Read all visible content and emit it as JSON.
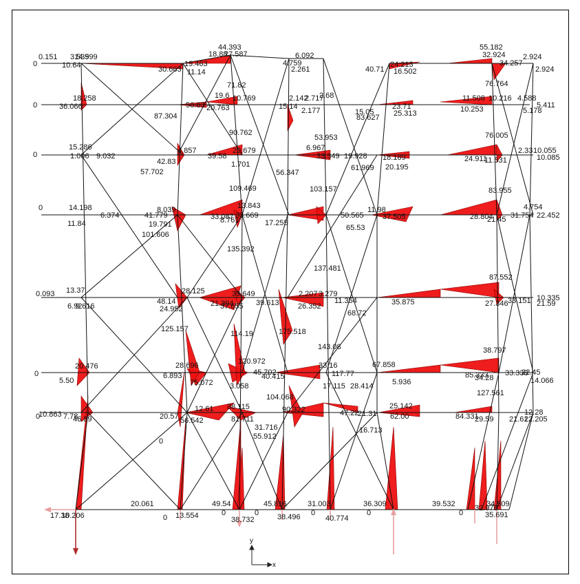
{
  "figure": {
    "axes": {
      "y_label": "y",
      "x_label": "x"
    }
  },
  "moment_labels": [
    "0.151",
    "3.539",
    "14.599",
    "10.64",
    "0",
    "30.663",
    "19.463",
    "11.14",
    "44.393",
    "18.88",
    "27.587",
    "71.82",
    "4.759",
    "6.092",
    "2.261",
    "40.71",
    "24.213",
    "16.502",
    "55.182",
    "32.924",
    "34.257",
    "2.924",
    "2.924",
    "0",
    "18.258",
    "36.066",
    "87.304",
    "50.83",
    "20.763",
    "10.769",
    "19.6",
    "2.142",
    "2.717",
    "2.68",
    "15.14",
    "2.177",
    "15.05",
    "23.71",
    "83.627",
    "25.313",
    "76.764",
    "11.508",
    "10.216",
    "10.253",
    "4.588",
    "5.411",
    "5.178",
    "0",
    "15.286",
    "1.006",
    "9.032",
    "42.83",
    "57.702",
    "4.857",
    "39.58",
    "20.679",
    "1.701",
    "90.762",
    "6.967",
    "53.953",
    "56.347",
    "33.349",
    "19.928",
    "18.189",
    "61.969",
    "20.195",
    "76.005",
    "24.911",
    "11.531",
    "2.33",
    "10.055",
    "10.085",
    "0",
    "14.198",
    "6.374",
    "11.84",
    "41.779",
    "19.791",
    "101.606",
    "8.039",
    "33.087",
    "8.761",
    "13.843",
    "33.669",
    "109.469",
    "17.255",
    "103.157",
    "50.565",
    "11.98",
    "37.505",
    "65.53",
    "83.955",
    "28.804",
    "21.45",
    "31.754",
    "4.754",
    "22.452",
    "0.093",
    "13.37",
    "6.92",
    "9.616",
    "48.14",
    "24.952",
    "125.157",
    "28.125",
    "21.394",
    "37.655",
    "135.392",
    "39.649",
    "39.613",
    "2.207",
    "3.279",
    "137.481",
    "26.352",
    "11.354",
    "35.875",
    "68.72",
    "87.552",
    "27.346",
    "33.151",
    "10.335",
    "21.59",
    "0",
    "5.50",
    "20.476",
    "6.893",
    "75.072",
    "28.696",
    "3.058",
    "120.972",
    "45.702",
    "40.415",
    "33.16",
    "17.115",
    "117.77",
    "28.414",
    "67.858",
    "5.936",
    "38.797",
    "85.333",
    "34.28",
    "33.338",
    "22.45",
    "14.066",
    "10.863",
    "0",
    "7.78",
    "46.89",
    "20.57",
    "56.542",
    "12.61",
    "81.711",
    "38.115",
    "31.716",
    "55.912",
    "90.322",
    "47.22",
    "21.31",
    "25.142",
    "16.713",
    "62.00",
    "127.561",
    "84.331",
    "29.59",
    "21.61",
    "12.28",
    "22.205",
    "17.38",
    "10.206",
    "20.061",
    "0",
    "13.554",
    "49.54",
    "0",
    "38.732",
    "45.816",
    "0",
    "38.496",
    "31.003",
    "0",
    "40.774",
    "36.309",
    "0",
    "39.532",
    "0",
    "32.978",
    "35.691",
    "34.509",
    "0",
    "114.19",
    "175.518",
    "143.08",
    "104.068",
    "95.404"
  ]
}
